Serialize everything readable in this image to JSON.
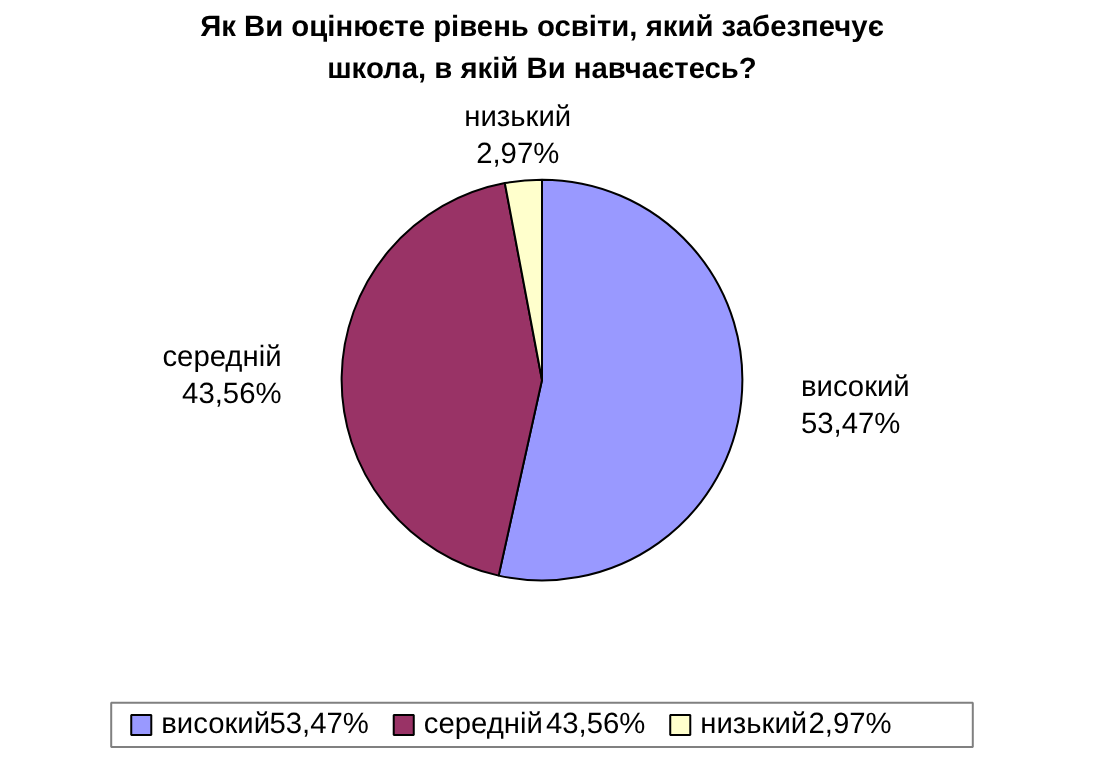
{
  "chart_data": {
    "type": "pie",
    "title": "Як Ви оцінюєте рівень освіти, який забезпечує\nшкола, в якій Ви навчаєтесь?",
    "categories": [
      "високий",
      "середній",
      "низький"
    ],
    "values": [
      53.47,
      43.56,
      2.97
    ],
    "value_labels": [
      "53,47%",
      "43,56%",
      "2,97%"
    ],
    "colors": [
      "#9999ff",
      "#993366",
      "#ffffcc"
    ],
    "legend": "bottom"
  }
}
